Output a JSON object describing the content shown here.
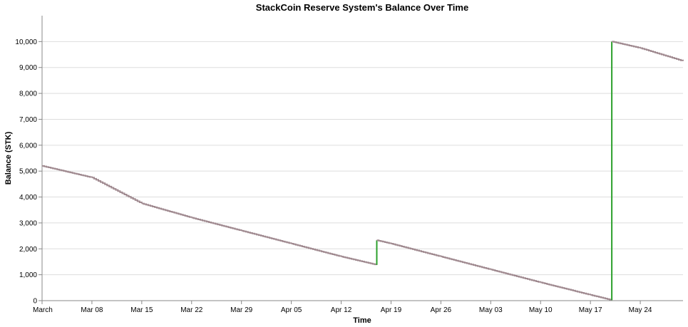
{
  "chart_data": {
    "type": "line",
    "title": "StackCoin Reserve System's Balance Over Time",
    "xlabel": "Time",
    "ylabel": "Balance (STK)",
    "x_tick_labels": [
      "March",
      "Mar 08",
      "Mar 15",
      "Mar 22",
      "Mar 29",
      "Apr 05",
      "Apr 12",
      "Apr 19",
      "Apr 26",
      "May 03",
      "May 10",
      "May 17",
      "May 24"
    ],
    "x_tick_dates": [
      "2021-03-01",
      "2021-03-08",
      "2021-03-15",
      "2021-03-22",
      "2021-03-29",
      "2021-04-05",
      "2021-04-12",
      "2021-04-19",
      "2021-04-26",
      "2021-05-03",
      "2021-05-10",
      "2021-05-17",
      "2021-05-24"
    ],
    "xlim": [
      "2021-03-01",
      "2021-05-30"
    ],
    "ylim": [
      0,
      11000
    ],
    "y_ticks": [
      0,
      1000,
      2000,
      3000,
      4000,
      5000,
      6000,
      7000,
      8000,
      9000,
      10000
    ],
    "y_tick_labels": [
      "0",
      "1,000",
      "2,000",
      "3,000",
      "4,000",
      "5,000",
      "6,000",
      "7,000",
      "8,000",
      "9,000",
      "10,000"
    ],
    "grid": "horizontal",
    "legend": "none",
    "colors": {
      "decrease": "#a08a90",
      "increase": "#2ca02c",
      "grid": "#dddddd",
      "axis": "#888888"
    },
    "series": [
      {
        "points": [
          {
            "x": "2021-03-01",
            "y": 5200
          },
          {
            "x": "2021-03-08",
            "y": 4750
          },
          {
            "x": "2021-03-15",
            "y": 3750
          },
          {
            "x": "2021-03-22",
            "y": 3200
          },
          {
            "x": "2021-03-29",
            "y": 2700
          },
          {
            "x": "2021-04-05",
            "y": 2200
          },
          {
            "x": "2021-04-12",
            "y": 1700
          },
          {
            "x": "2021-04-17",
            "y": 1380
          },
          {
            "x": "2021-04-17",
            "y": 2330
          },
          {
            "x": "2021-04-19",
            "y": 2200
          },
          {
            "x": "2021-04-26",
            "y": 1700
          },
          {
            "x": "2021-05-03",
            "y": 1200
          },
          {
            "x": "2021-05-10",
            "y": 700
          },
          {
            "x": "2021-05-17",
            "y": 220
          },
          {
            "x": "2021-05-20",
            "y": 20
          },
          {
            "x": "2021-05-20",
            "y": 10000
          },
          {
            "x": "2021-05-24",
            "y": 9750
          },
          {
            "x": "2021-05-30",
            "y": 9250
          }
        ]
      }
    ]
  }
}
